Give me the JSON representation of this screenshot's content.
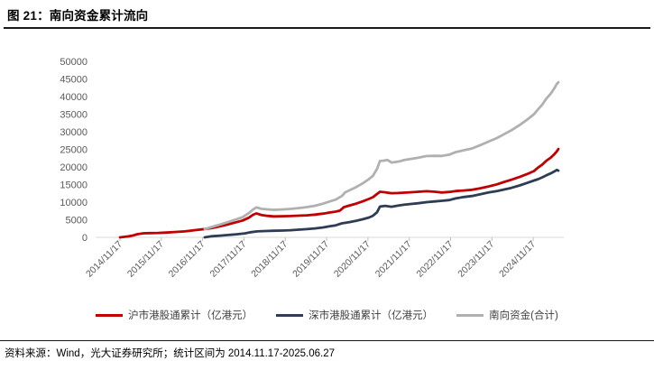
{
  "header": {
    "title": "图 21：南向资金累计流向"
  },
  "footer": {
    "source": "资料来源：Wind，光大证券研究所；统计区间为 2014.11.17-2025.06.27"
  },
  "colors": {
    "hu_line": "#c00000",
    "shen_line": "#2e3d54",
    "total_line": "#b0b0b0",
    "axis_text": "#595959",
    "axis_line": "#d9d9d9",
    "tick_mark": "#bfbfbf",
    "rule": "#1a1a1a"
  },
  "chart_data": {
    "type": "line",
    "title": "",
    "xlabel": "",
    "ylabel": "",
    "unit": "亿港元",
    "grid": false,
    "legend_position": "bottom",
    "x_domain": [
      2014.29,
      2025.62
    ],
    "ylim": [
      0,
      50000
    ],
    "y_ticks": [
      0,
      5000,
      10000,
      15000,
      20000,
      25000,
      30000,
      35000,
      40000,
      45000,
      50000
    ],
    "x_ticks": [
      {
        "t": 2014.88,
        "label": "2014/11/17"
      },
      {
        "t": 2015.88,
        "label": "2015/11/17"
      },
      {
        "t": 2016.88,
        "label": "2016/11/17"
      },
      {
        "t": 2017.88,
        "label": "2017/11/17"
      },
      {
        "t": 2018.88,
        "label": "2018/11/17"
      },
      {
        "t": 2019.88,
        "label": "2019/11/17"
      },
      {
        "t": 2020.88,
        "label": "2020/11/17"
      },
      {
        "t": 2021.88,
        "label": "2021/11/17"
      },
      {
        "t": 2022.88,
        "label": "2022/11/17"
      },
      {
        "t": 2023.88,
        "label": "2023/11/17"
      },
      {
        "t": 2024.88,
        "label": "2024/11/17"
      }
    ],
    "series": [
      {
        "name": "沪市港股通累计（亿港元）",
        "color": "#c00000",
        "points": [
          [
            2014.88,
            0
          ],
          [
            2015.0,
            150
          ],
          [
            2015.1,
            300
          ],
          [
            2015.2,
            550
          ],
          [
            2015.3,
            900
          ],
          [
            2015.45,
            1150
          ],
          [
            2015.6,
            1200
          ],
          [
            2015.8,
            1250
          ],
          [
            2016.0,
            1350
          ],
          [
            2016.2,
            1500
          ],
          [
            2016.45,
            1700
          ],
          [
            2016.7,
            2050
          ],
          [
            2016.93,
            2350
          ],
          [
            2017.1,
            2650
          ],
          [
            2017.3,
            3150
          ],
          [
            2017.5,
            3700
          ],
          [
            2017.7,
            4300
          ],
          [
            2017.85,
            4800
          ],
          [
            2018.0,
            5600
          ],
          [
            2018.1,
            6400
          ],
          [
            2018.18,
            6800
          ],
          [
            2018.3,
            6350
          ],
          [
            2018.45,
            6100
          ],
          [
            2018.6,
            5950
          ],
          [
            2018.8,
            6000
          ],
          [
            2019.0,
            6050
          ],
          [
            2019.2,
            6150
          ],
          [
            2019.4,
            6250
          ],
          [
            2019.6,
            6450
          ],
          [
            2019.8,
            6750
          ],
          [
            2019.95,
            7050
          ],
          [
            2020.1,
            7300
          ],
          [
            2020.2,
            7600
          ],
          [
            2020.3,
            8600
          ],
          [
            2020.45,
            9100
          ],
          [
            2020.6,
            9600
          ],
          [
            2020.75,
            10200
          ],
          [
            2020.9,
            10900
          ],
          [
            2021.0,
            11400
          ],
          [
            2021.1,
            12300
          ],
          [
            2021.17,
            12950
          ],
          [
            2021.3,
            12800
          ],
          [
            2021.45,
            12550
          ],
          [
            2021.6,
            12600
          ],
          [
            2021.75,
            12700
          ],
          [
            2021.9,
            12800
          ],
          [
            2022.1,
            12950
          ],
          [
            2022.3,
            13100
          ],
          [
            2022.5,
            12950
          ],
          [
            2022.67,
            12750
          ],
          [
            2022.85,
            12900
          ],
          [
            2023.0,
            13150
          ],
          [
            2023.2,
            13300
          ],
          [
            2023.4,
            13500
          ],
          [
            2023.6,
            13950
          ],
          [
            2023.8,
            14450
          ],
          [
            2024.0,
            15050
          ],
          [
            2024.15,
            15650
          ],
          [
            2024.35,
            16350
          ],
          [
            2024.55,
            17150
          ],
          [
            2024.75,
            18050
          ],
          [
            2024.9,
            18850
          ],
          [
            2025.0,
            19850
          ],
          [
            2025.1,
            20700
          ],
          [
            2025.2,
            21800
          ],
          [
            2025.3,
            22600
          ],
          [
            2025.38,
            23500
          ],
          [
            2025.45,
            24400
          ],
          [
            2025.49,
            25100
          ]
        ]
      },
      {
        "name": "深市港股通累计（亿港元）",
        "color": "#2e3d54",
        "points": [
          [
            2016.93,
            0
          ],
          [
            2017.1,
            300
          ],
          [
            2017.3,
            480
          ],
          [
            2017.5,
            660
          ],
          [
            2017.7,
            860
          ],
          [
            2017.9,
            1120
          ],
          [
            2018.05,
            1450
          ],
          [
            2018.2,
            1700
          ],
          [
            2018.4,
            1800
          ],
          [
            2018.6,
            1860
          ],
          [
            2018.8,
            1920
          ],
          [
            2019.0,
            2020
          ],
          [
            2019.2,
            2170
          ],
          [
            2019.4,
            2330
          ],
          [
            2019.6,
            2530
          ],
          [
            2019.8,
            2830
          ],
          [
            2019.95,
            3120
          ],
          [
            2020.1,
            3420
          ],
          [
            2020.25,
            3970
          ],
          [
            2020.45,
            4370
          ],
          [
            2020.6,
            4720
          ],
          [
            2020.75,
            5120
          ],
          [
            2020.9,
            5620
          ],
          [
            2021.0,
            6120
          ],
          [
            2021.1,
            7100
          ],
          [
            2021.17,
            8750
          ],
          [
            2021.3,
            8950
          ],
          [
            2021.45,
            8700
          ],
          [
            2021.6,
            9000
          ],
          [
            2021.75,
            9250
          ],
          [
            2021.9,
            9450
          ],
          [
            2022.1,
            9700
          ],
          [
            2022.3,
            10000
          ],
          [
            2022.5,
            10200
          ],
          [
            2022.67,
            10380
          ],
          [
            2022.85,
            10600
          ],
          [
            2023.0,
            11050
          ],
          [
            2023.2,
            11450
          ],
          [
            2023.4,
            11750
          ],
          [
            2023.6,
            12250
          ],
          [
            2023.8,
            12750
          ],
          [
            2024.0,
            13150
          ],
          [
            2024.15,
            13500
          ],
          [
            2024.35,
            14050
          ],
          [
            2024.55,
            14750
          ],
          [
            2024.75,
            15550
          ],
          [
            2024.9,
            16150
          ],
          [
            2025.0,
            16550
          ],
          [
            2025.1,
            17050
          ],
          [
            2025.2,
            17650
          ],
          [
            2025.3,
            18150
          ],
          [
            2025.38,
            18650
          ],
          [
            2025.45,
            19150
          ],
          [
            2025.49,
            18950
          ]
        ]
      },
      {
        "name": "南向资金(合计)",
        "color": "#b0b0b0",
        "points": [
          [
            2016.93,
            2350
          ],
          [
            2017.1,
            2950
          ],
          [
            2017.3,
            3650
          ],
          [
            2017.5,
            4350
          ],
          [
            2017.7,
            5150
          ],
          [
            2017.85,
            5750
          ],
          [
            2018.0,
            6900
          ],
          [
            2018.1,
            7900
          ],
          [
            2018.18,
            8500
          ],
          [
            2018.3,
            8100
          ],
          [
            2018.45,
            7950
          ],
          [
            2018.6,
            7820
          ],
          [
            2018.8,
            7920
          ],
          [
            2019.0,
            8070
          ],
          [
            2019.2,
            8320
          ],
          [
            2019.4,
            8580
          ],
          [
            2019.6,
            8980
          ],
          [
            2019.8,
            9580
          ],
          [
            2019.95,
            10170
          ],
          [
            2020.1,
            10720
          ],
          [
            2020.25,
            11750
          ],
          [
            2020.33,
            12800
          ],
          [
            2020.45,
            13450
          ],
          [
            2020.6,
            14300
          ],
          [
            2020.75,
            15300
          ],
          [
            2020.9,
            16500
          ],
          [
            2021.0,
            17500
          ],
          [
            2021.1,
            19400
          ],
          [
            2021.17,
            21700
          ],
          [
            2021.27,
            21800
          ],
          [
            2021.35,
            22000
          ],
          [
            2021.45,
            21250
          ],
          [
            2021.55,
            21400
          ],
          [
            2021.65,
            21600
          ],
          [
            2021.75,
            21950
          ],
          [
            2021.9,
            22250
          ],
          [
            2022.1,
            22650
          ],
          [
            2022.3,
            23100
          ],
          [
            2022.5,
            23150
          ],
          [
            2022.67,
            23130
          ],
          [
            2022.85,
            23500
          ],
          [
            2023.0,
            24200
          ],
          [
            2023.2,
            24750
          ],
          [
            2023.4,
            25250
          ],
          [
            2023.6,
            26200
          ],
          [
            2023.8,
            27200
          ],
          [
            2024.0,
            28200
          ],
          [
            2024.15,
            29150
          ],
          [
            2024.35,
            30400
          ],
          [
            2024.55,
            31900
          ],
          [
            2024.75,
            33600
          ],
          [
            2024.9,
            35000
          ],
          [
            2025.0,
            36400
          ],
          [
            2025.1,
            37750
          ],
          [
            2025.2,
            39450
          ],
          [
            2025.3,
            40750
          ],
          [
            2025.38,
            42150
          ],
          [
            2025.45,
            43550
          ],
          [
            2025.49,
            44050
          ]
        ]
      }
    ]
  }
}
